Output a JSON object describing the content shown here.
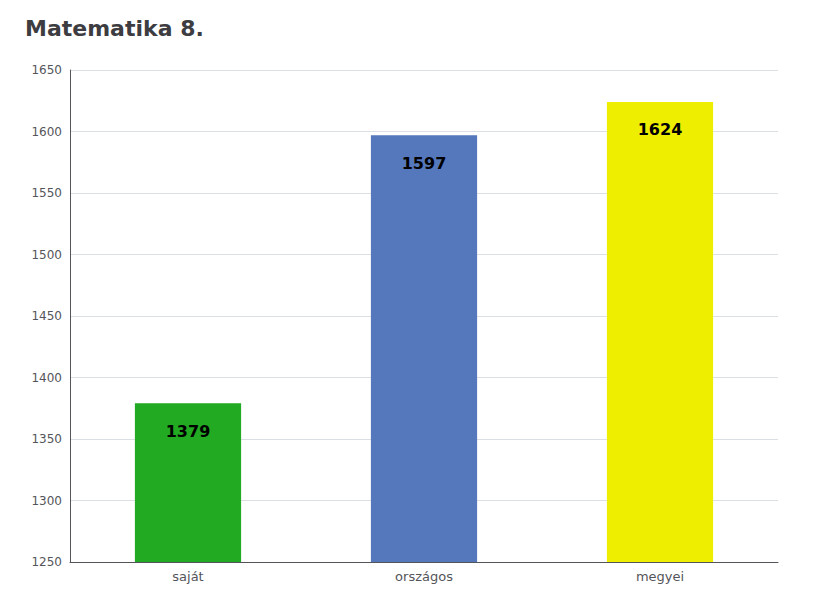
{
  "chart_data": {
    "type": "bar",
    "title": "Matematika 8.",
    "categories": [
      "saját",
      "országos",
      "megyei"
    ],
    "values": [
      1379,
      1597,
      1624
    ],
    "colors": [
      "#22aa22",
      "#5577bb",
      "#eeee00"
    ],
    "ylim": [
      1250,
      1650
    ],
    "yticks": [
      1250,
      1300,
      1350,
      1400,
      1450,
      1500,
      1550,
      1600,
      1650
    ],
    "grid": true,
    "data_labels": true
  }
}
